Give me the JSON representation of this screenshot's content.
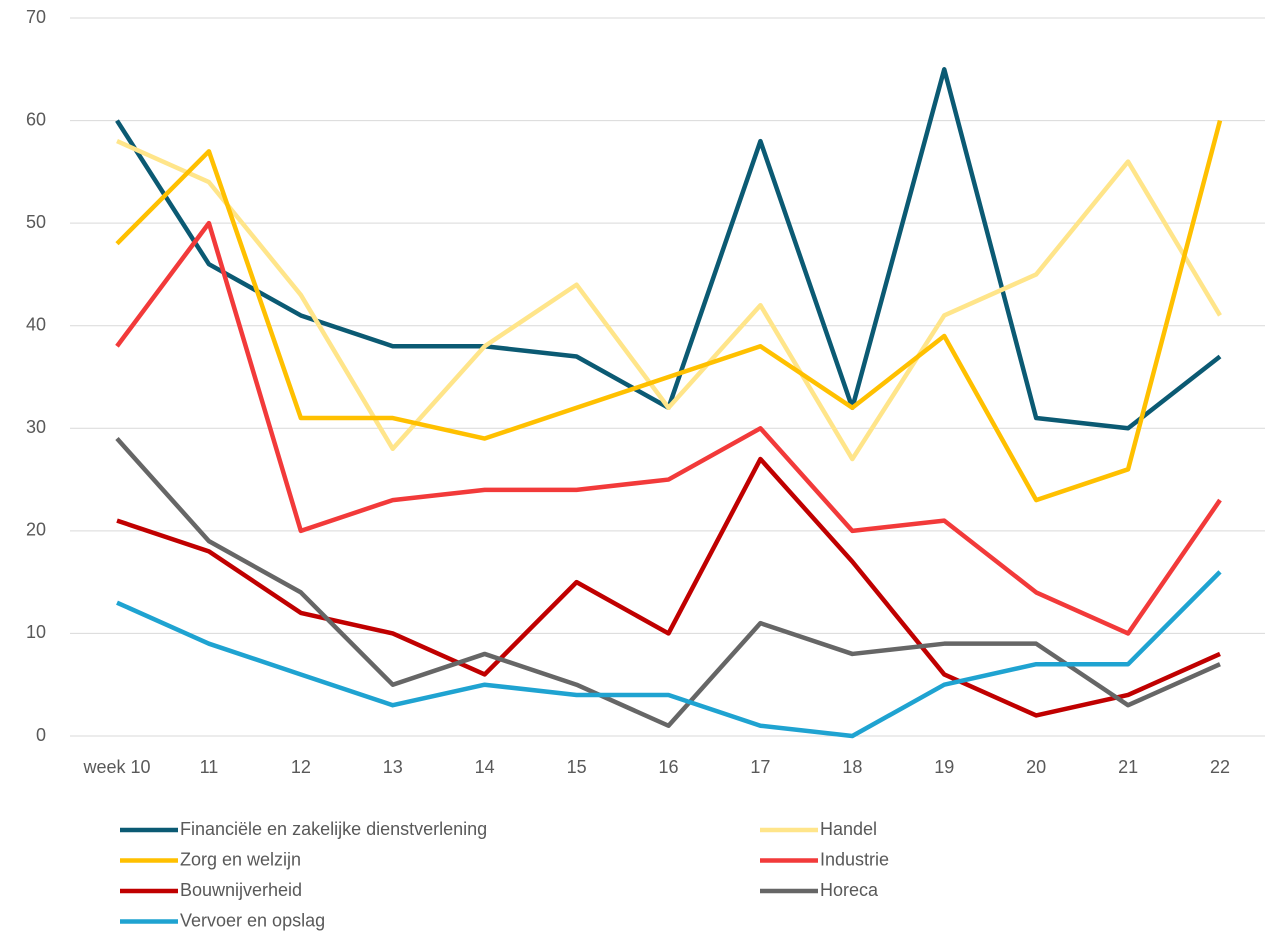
{
  "chart_data": {
    "type": "line",
    "categories": [
      "week 10",
      "11",
      "12",
      "13",
      "14",
      "15",
      "16",
      "17",
      "18",
      "19",
      "20",
      "21",
      "22"
    ],
    "series": [
      {
        "name": "Financiële en zakelijke dienstverlening",
        "color": "#0b5a73",
        "values": [
          60,
          46,
          41,
          38,
          38,
          37,
          32,
          58,
          32,
          65,
          31,
          30,
          37
        ]
      },
      {
        "name": "Handel",
        "color": "#ffe58a",
        "values": [
          58,
          54,
          43,
          28,
          38,
          44,
          32,
          42,
          27,
          41,
          45,
          56,
          41
        ]
      },
      {
        "name": "Zorg en welzijn",
        "color": "#ffc000",
        "values": [
          48,
          57,
          31,
          31,
          29,
          32,
          35,
          38,
          32,
          39,
          23,
          26,
          60
        ]
      },
      {
        "name": "Industrie",
        "color": "#f23a3a",
        "values": [
          38,
          50,
          20,
          23,
          24,
          24,
          25,
          30,
          20,
          21,
          14,
          10,
          23
        ]
      },
      {
        "name": "Bouwnijverheid",
        "color": "#c00000",
        "values": [
          21,
          18,
          12,
          10,
          6,
          15,
          10,
          27,
          17,
          6,
          2,
          4,
          8
        ]
      },
      {
        "name": "Horeca",
        "color": "#666666",
        "values": [
          29,
          19,
          14,
          5,
          8,
          5,
          1,
          11,
          8,
          9,
          9,
          3,
          7
        ]
      },
      {
        "name": "Vervoer en opslag",
        "color": "#1fa3d1",
        "values": [
          13,
          9,
          6,
          3,
          5,
          4,
          4,
          1,
          0,
          5,
          7,
          7,
          16
        ]
      }
    ],
    "ylim": [
      0,
      70
    ],
    "yticks": [
      0,
      10,
      20,
      30,
      40,
      50,
      60,
      70
    ],
    "grid": true,
    "legend": "bottom"
  }
}
